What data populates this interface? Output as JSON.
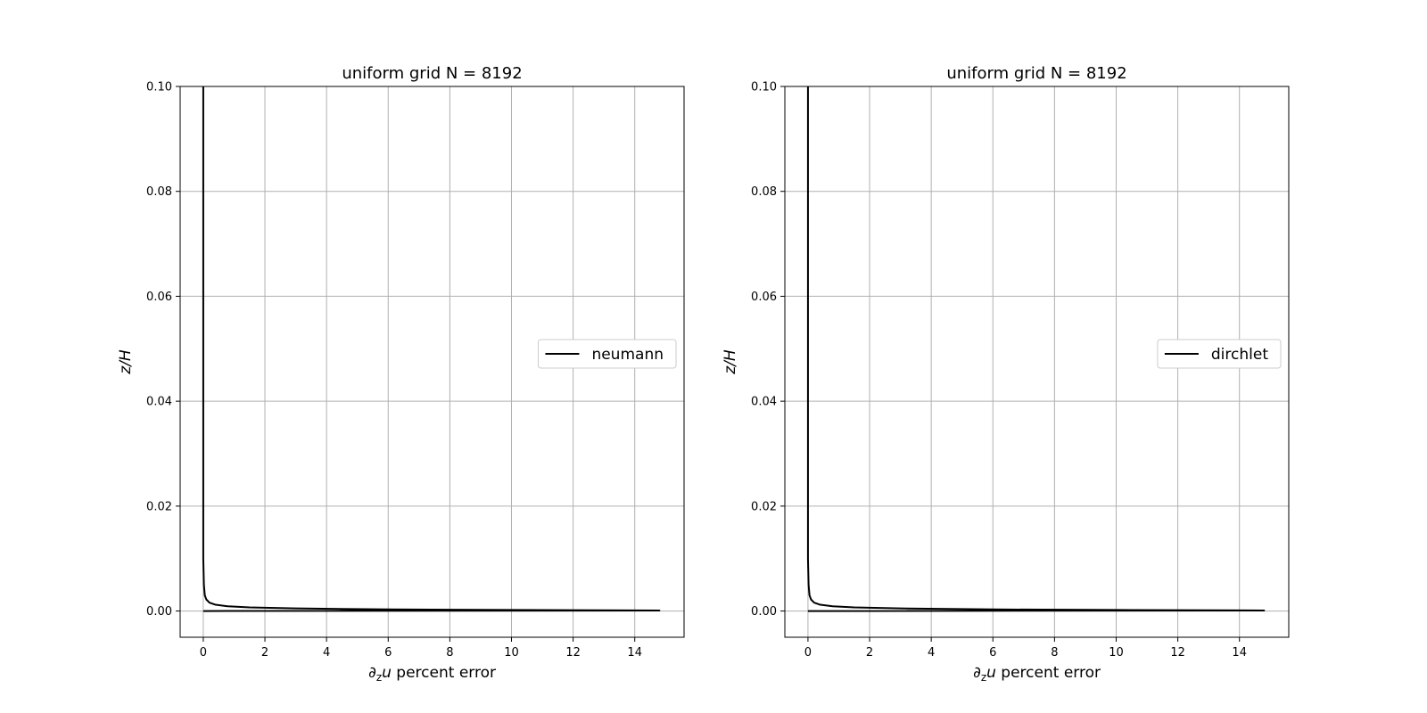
{
  "chart_data": [
    {
      "type": "line",
      "title": "uniform grid N = 8192",
      "xlabel": {
        "main": "∂",
        "sub": "z",
        "var": "u",
        "rest": " percent error"
      },
      "ylabel": "z/H",
      "xlim": [
        -0.75,
        15.6
      ],
      "ylim": [
        -0.005,
        0.1
      ],
      "xticks": [
        0,
        2,
        4,
        6,
        8,
        10,
        12,
        14
      ],
      "yticks": [
        "0.00",
        "0.02",
        "0.04",
        "0.06",
        "0.08",
        "0.10"
      ],
      "grid": true,
      "legend_position": "center-right",
      "series": [
        {
          "name": "neumann",
          "color": "#000000",
          "x": [
            0.0,
            0.0,
            0.0,
            0.02,
            0.05,
            0.1,
            0.2,
            0.4,
            0.8,
            1.5,
            3.0,
            6.0,
            10.0,
            14.8,
            0.0
          ],
          "y": [
            0.1,
            0.05,
            0.01,
            0.005,
            0.003,
            0.0022,
            0.0016,
            0.0012,
            0.0009,
            0.0007,
            0.0005,
            0.0003,
            0.0002,
            0.0001,
            0.0
          ]
        }
      ]
    },
    {
      "type": "line",
      "title": "uniform grid N = 8192",
      "xlabel": {
        "main": "∂",
        "sub": "z",
        "var": "u",
        "rest": " percent error"
      },
      "ylabel": "z/H",
      "xlim": [
        -0.75,
        15.6
      ],
      "ylim": [
        -0.005,
        0.1
      ],
      "xticks": [
        0,
        2,
        4,
        6,
        8,
        10,
        12,
        14
      ],
      "yticks": [
        "0.00",
        "0.02",
        "0.04",
        "0.06",
        "0.08",
        "0.10"
      ],
      "grid": true,
      "legend_position": "center-right",
      "series": [
        {
          "name": "dirchlet",
          "color": "#000000",
          "x": [
            0.0,
            0.0,
            0.0,
            0.02,
            0.05,
            0.1,
            0.2,
            0.4,
            0.8,
            1.5,
            3.0,
            6.0,
            10.0,
            14.8,
            0.0
          ],
          "y": [
            0.1,
            0.05,
            0.01,
            0.005,
            0.003,
            0.0022,
            0.0016,
            0.0012,
            0.0009,
            0.0007,
            0.0005,
            0.0003,
            0.0002,
            0.0001,
            0.0
          ]
        }
      ]
    }
  ]
}
